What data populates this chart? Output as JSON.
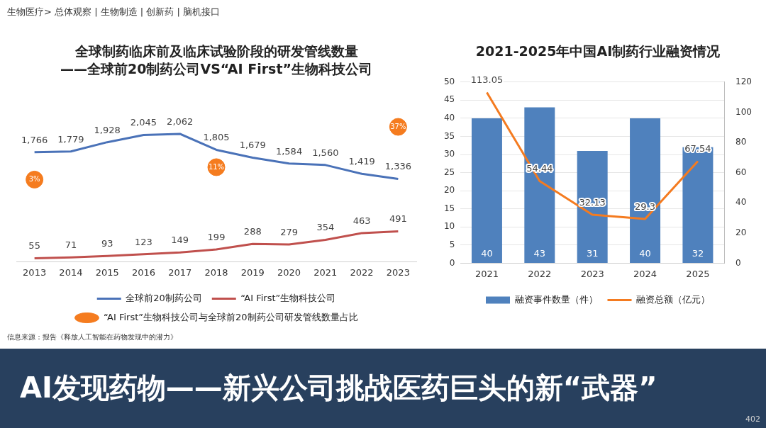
{
  "chart_data": [
    {
      "type": "other",
      "annotations": [
        "生物医疗> 总体观察 | 生物制造 | 创新药 | 脑机接口"
      ]
    },
    {
      "type": "line",
      "title": "全球制药临床前及临床试验阶段的研发管线数量",
      "subtitle": "——全球前20制药公司VS“AI First”生物科技公司",
      "categories": [
        "2013",
        "2014",
        "2015",
        "2016",
        "2017",
        "2018",
        "2019",
        "2020",
        "2021",
        "2022",
        "2023"
      ],
      "series": [
        {
          "name": "全球前20制药公司",
          "color": "#4a72b8",
          "marker": "none",
          "values": [
            1766,
            1779,
            1928,
            2045,
            2062,
            1805,
            1679,
            1584,
            1560,
            1419,
            1336
          ],
          "value_labels": [
            "1,766",
            "1,779",
            "1,928",
            "2,045",
            "2,062",
            "1,805",
            "1,679",
            "1,584",
            "1,560",
            "1,419",
            "1,336"
          ]
        },
        {
          "name": "“AI First”生物科技公司",
          "color": "#c0504d",
          "marker": "none",
          "values": [
            55,
            71,
            93,
            123,
            149,
            199,
            288,
            279,
            354,
            463,
            491
          ]
        },
        {
          "name": "“AI First”生物科技公司与全球前20制药公司研发管线数量占比",
          "type": "scatter",
          "axis": "y2",
          "color": "#f57c1f",
          "values": [
            3,
            null,
            null,
            null,
            null,
            11,
            null,
            null,
            null,
            null,
            37
          ],
          "value_labels": [
            "3%",
            null,
            null,
            null,
            null,
            "11%",
            null,
            null,
            null,
            null,
            "37%"
          ],
          "marker": "circle"
        }
      ],
      "tick_labels": "x",
      "data_labels": true,
      "legend": "bottom",
      "grid": false,
      "annotations": [
        "信息来源：报告《释放人工智能在药物发现中的潜力》"
      ]
    },
    {
      "type": "bar",
      "title": "2021-2025年中国AI制药行业融资情况",
      "categories": [
        "2021",
        "2022",
        "2023",
        "2024",
        "2025"
      ],
      "series": [
        {
          "name": "融资事件数量（件）",
          "color": "#4f81bd",
          "values": [
            40,
            43,
            31,
            40,
            32
          ]
        },
        {
          "name": "融资总额（亿元）",
          "type": "line",
          "axis": "y2",
          "color": "#f47b20",
          "values": [
            113.05,
            54.44,
            32.13,
            29.3,
            67.54
          ]
        }
      ],
      "ylim": [
        0,
        50
      ],
      "yticks": [
        0,
        5,
        10,
        15,
        20,
        25,
        30,
        35,
        40,
        45,
        50
      ],
      "y2lim": [
        0,
        120
      ],
      "y2ticks": [
        0,
        20,
        40,
        60,
        80,
        100,
        120
      ],
      "grid": "y",
      "legend": "bottom",
      "marker": "none",
      "data_labels": true
    },
    {
      "type": "other",
      "title": "AI发现药物——新兴公司挑战医药巨头的新“武器”",
      "annotations": [
        "402"
      ]
    }
  ]
}
